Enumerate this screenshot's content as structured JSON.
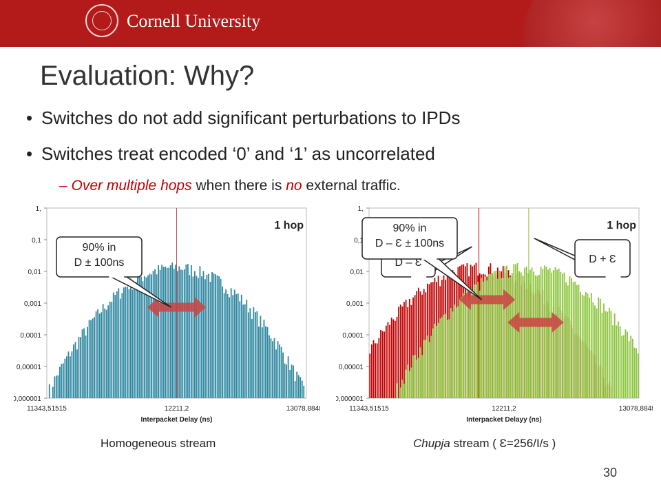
{
  "header": {
    "brand": "Cornell University",
    "seal_icon": "cornell-seal-icon"
  },
  "slide": {
    "title": "Evaluation: Why?",
    "bullets": [
      "Switches do not add significant perturbations to IPDs",
      "Switches treat encoded ‘0’ and ‘1’ as uncorrelated"
    ],
    "sub_bullet": {
      "dash": "–",
      "part1": "Over multiple hops",
      "part2": " when there is ",
      "part3": "no",
      "part4": " external traffic."
    },
    "caption_left": "Homogeneous stream",
    "caption_right_italic": "Chupja",
    "caption_right_rest": " stream ( Ɛ=256/I/s )",
    "slide_number": "30"
  },
  "colors": {
    "banner": "#b31b1b",
    "teal": "#2e87a0",
    "red": "#c00000",
    "green": "#8cc43c",
    "arrow": "#cc4444"
  },
  "chart_data": [
    {
      "type": "bar",
      "xlabel": "Interpacket Delay (ns)",
      "ylabel": "",
      "x_ticks": [
        "11343,51515",
        "12211,2",
        "13078,88485"
      ],
      "y_ticks": [
        "1,",
        "0,1",
        "0,01",
        "0,001",
        "0,0001",
        "0,00001",
        "0,000001"
      ],
      "xlim": [
        11343.51515,
        13078.88485
      ],
      "ylim": [
        1e-06,
        1
      ],
      "yscale": "log",
      "legend": "1 hop",
      "callouts": [
        {
          "line1": "90% in",
          "line2": "D ± 100ns"
        }
      ],
      "series": [
        {
          "name": "1 hop",
          "color": "#2e87a0",
          "center": 12211.2,
          "spread": 300,
          "peak": 0.02
        }
      ]
    },
    {
      "type": "bar",
      "xlabel": "Interpacket Delayy (ns)",
      "ylabel": "",
      "x_ticks": [
        "11343,51515",
        "12211,2",
        "13078,88485"
      ],
      "y_ticks": [
        "1,",
        "0,1",
        "0,01",
        "0,001",
        "0,0001",
        "0,00001",
        "0,000001"
      ],
      "xlim": [
        11343.51515,
        13078.88485
      ],
      "ylim": [
        1e-06,
        1
      ],
      "yscale": "log",
      "legend": "1 hop",
      "callouts": [
        {
          "line1": "90% in",
          "line2": "D – Ɛ ± 100ns"
        },
        {
          "line1": "D – Ɛ",
          "line2": ""
        },
        {
          "line1": "D + Ɛ",
          "line2": ""
        }
      ],
      "series": [
        {
          "name": "",
          "color": "#c00000",
          "center": 12050,
          "spread": 300,
          "peak": 0.02
        },
        {
          "name": "",
          "color": "#8cc43c",
          "center": 12370,
          "spread": 300,
          "peak": 0.02
        }
      ]
    }
  ]
}
